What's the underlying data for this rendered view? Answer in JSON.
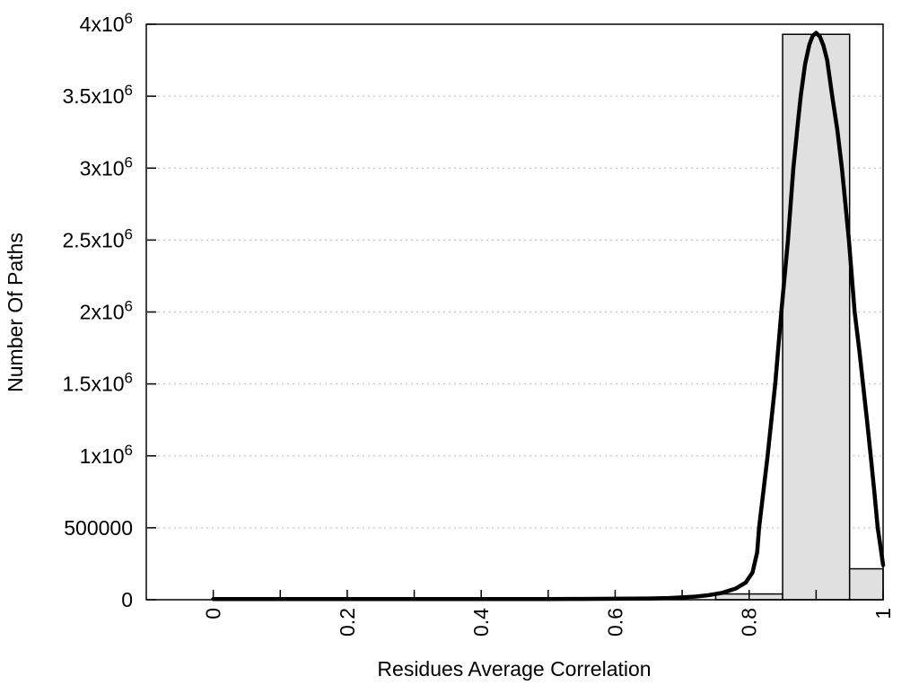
{
  "chart_data": {
    "type": "bar",
    "title": "",
    "xlabel": "Residues Average Correlation",
    "ylabel": "Number Of Paths",
    "xlim": [
      -0.1,
      1.0
    ],
    "ylim": [
      0,
      4000000
    ],
    "grid": "horizontal-dotted",
    "legend": "none",
    "x_ticks": {
      "positions": [
        0,
        0.1,
        0.2,
        0.3,
        0.4,
        0.5,
        0.6,
        0.7,
        0.8,
        0.9,
        1.0
      ],
      "labels": [
        {
          "value": 0,
          "text": "0"
        },
        {
          "value": 0.2,
          "text": "0.2"
        },
        {
          "value": 0.4,
          "text": "0.4"
        },
        {
          "value": 0.6,
          "text": "0.6"
        },
        {
          "value": 0.8,
          "text": "0.8"
        },
        {
          "value": 1,
          "text": "1"
        }
      ]
    },
    "y_ticks": [
      {
        "value": 0,
        "base": "0",
        "sup": ""
      },
      {
        "value": 500000,
        "base": "500000",
        "sup": ""
      },
      {
        "value": 1000000,
        "base": "1x10",
        "sup": "6"
      },
      {
        "value": 1500000,
        "base": "1.5x10",
        "sup": "6"
      },
      {
        "value": 2000000,
        "base": "2x10",
        "sup": "6"
      },
      {
        "value": 2500000,
        "base": "2.5x10",
        "sup": "6"
      },
      {
        "value": 3000000,
        "base": "3x10",
        "sup": "6"
      },
      {
        "value": 3500000,
        "base": "3.5x10",
        "sup": "6"
      },
      {
        "value": 4000000,
        "base": "4x10",
        "sup": "6"
      }
    ],
    "bars": [
      {
        "x0": 0.75,
        "x1": 0.85,
        "value": 40000
      },
      {
        "x0": 0.85,
        "x1": 0.95,
        "value": 3930000
      },
      {
        "x0": 0.95,
        "x1": 1.0,
        "value": 215000
      }
    ],
    "fit_curve": {
      "description": "gaussian-like fit, peak 3.94e6 at x=0.9",
      "points": [
        [
          0.0,
          5000
        ],
        [
          0.05,
          5000
        ],
        [
          0.1,
          5000
        ],
        [
          0.15,
          5000
        ],
        [
          0.2,
          5000
        ],
        [
          0.25,
          5000
        ],
        [
          0.3,
          5000
        ],
        [
          0.35,
          5000
        ],
        [
          0.4,
          5000
        ],
        [
          0.45,
          5000
        ],
        [
          0.5,
          5000
        ],
        [
          0.55,
          5500
        ],
        [
          0.6,
          7000
        ],
        [
          0.65,
          9000
        ],
        [
          0.68,
          12000
        ],
        [
          0.7,
          16000
        ],
        [
          0.72,
          22000
        ],
        [
          0.74,
          32000
        ],
        [
          0.76,
          48000
        ],
        [
          0.78,
          78000
        ],
        [
          0.795,
          120000
        ],
        [
          0.805,
          190000
        ],
        [
          0.812,
          330000
        ],
        [
          0.8148,
          500000
        ],
        [
          0.8276,
          1000000
        ],
        [
          0.839,
          1500000
        ],
        [
          0.848,
          2000000
        ],
        [
          0.858,
          2500000
        ],
        [
          0.866,
          3000000
        ],
        [
          0.8725,
          3300000
        ],
        [
          0.877,
          3500000
        ],
        [
          0.8835,
          3720000
        ],
        [
          0.89,
          3860000
        ],
        [
          0.895,
          3920000
        ],
        [
          0.9,
          3940000
        ],
        [
          0.9055,
          3915000
        ],
        [
          0.911,
          3850000
        ],
        [
          0.9165,
          3750000
        ],
        [
          0.924,
          3500000
        ],
        [
          0.9315,
          3270000
        ],
        [
          0.9385,
          3000000
        ],
        [
          0.949,
          2500000
        ],
        [
          0.9575,
          2000000
        ],
        [
          0.9645,
          1735000
        ],
        [
          0.97,
          1500000
        ],
        [
          0.976,
          1245000
        ],
        [
          0.9815,
          1000000
        ],
        [
          0.987,
          745000
        ],
        [
          0.992,
          500000
        ],
        [
          0.9965,
          355000
        ],
        [
          1.0,
          240000
        ]
      ]
    }
  },
  "colors": {
    "background": "#ffffff",
    "bar_fill": "#e0e0e0",
    "bar_border": "#000000",
    "curve": "#000000",
    "grid": "#c4c4c4",
    "axis": "#000000",
    "text": "#000000"
  }
}
